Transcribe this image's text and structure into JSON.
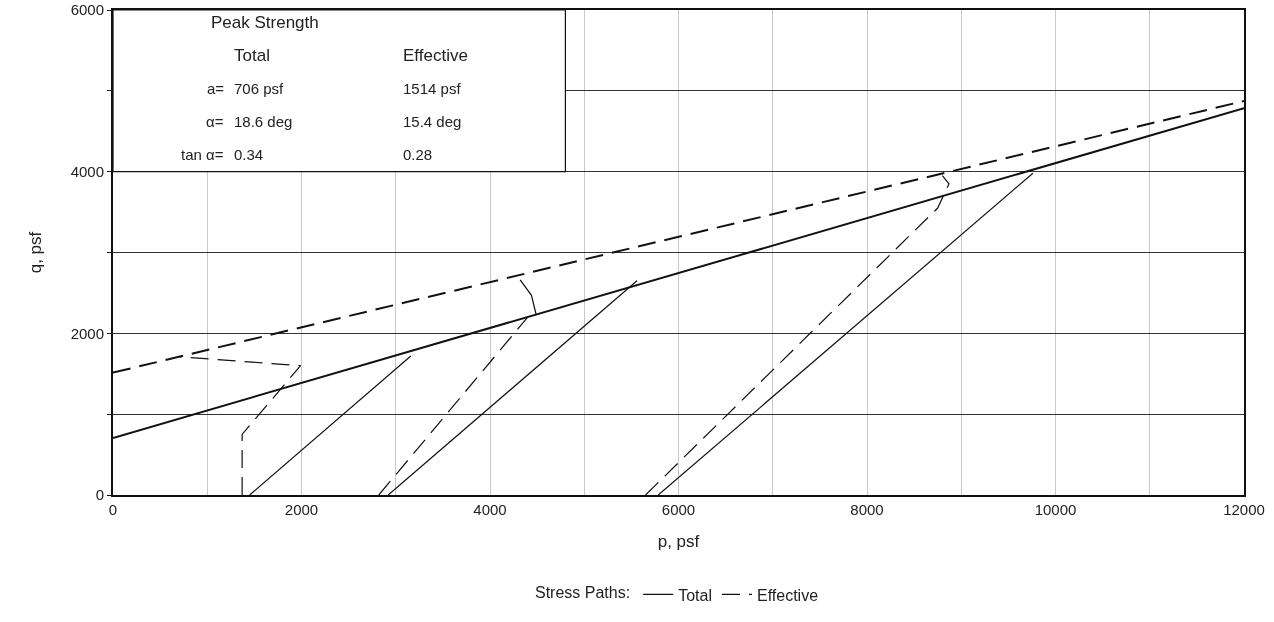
{
  "chart_data": {
    "type": "line",
    "xlabel": "p, psf",
    "ylabel": "q, psf",
    "legend_title": "Stress Paths:",
    "legend": "bottom",
    "grid": true,
    "marker": "none",
    "xlim": [
      0,
      12000
    ],
    "ylim": [
      0,
      6000
    ],
    "xticks": [
      0,
      {
        "value": 1000,
        "label": null
      },
      2000,
      {
        "value": 3000,
        "label": null
      },
      4000,
      {
        "value": 5000,
        "label": null
      },
      6000,
      {
        "value": 7000,
        "label": null
      },
      8000,
      {
        "value": 9000,
        "label": null
      },
      10000,
      {
        "value": 11000,
        "label": null
      },
      12000
    ],
    "yticks": [
      0,
      {
        "value": 1000,
        "label": null
      },
      2000,
      {
        "value": 3000,
        "label": null
      },
      4000,
      {
        "value": 5000,
        "label": null
      },
      6000
    ],
    "series": [
      {
        "name": "Total",
        "color": "#111111",
        "line_style": "solid",
        "x": [
          1450,
          3160,
          null,
          2920,
          5560,
          null,
          5785,
          9760
        ],
        "values": [
          0,
          1720,
          null,
          0,
          2650,
          null,
          0,
          3980
        ]
      },
      {
        "name": "Effective",
        "color": "#111111",
        "line_style": "dashed",
        "x": [
          1370,
          1370,
          1990,
          700,
          null,
          2820,
          4400,
          null,
          5650,
          8750,
          8870,
          8800
        ],
        "values": [
          0,
          750,
          1600,
          1710,
          null,
          0,
          2200,
          null,
          0,
          3550,
          3850,
          3950
        ]
      },
      {
        "color": "#111111",
        "line_style": "solid",
        "x": [
          0,
          12000
        ],
        "values": [
          706,
          4786
        ]
      },
      {
        "color": "#111111",
        "line_style": "dashed",
        "x": [
          0,
          12000
        ],
        "values": [
          1514,
          4874
        ]
      },
      {
        "color": "#111111",
        "line_style": "solid",
        "x": [
          4320,
          4440,
          4490
        ],
        "values": [
          2660,
          2470,
          2230
        ]
      }
    ],
    "annotations": [
      "Peak Strength",
      "Total",
      "Effective",
      "a=",
      "706 psf",
      "1514 psf",
      "α=",
      "18.6 deg",
      "15.4 deg",
      "tan α=",
      "0.34",
      "0.28"
    ]
  }
}
